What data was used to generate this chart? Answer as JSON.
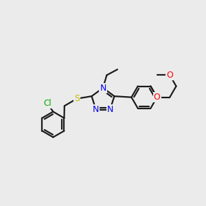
{
  "bg_color": "#ebebeb",
  "bond_color": "#1a1a1a",
  "bond_width": 1.6,
  "dbo": 0.1,
  "atom_colors": {
    "N": "#0000ee",
    "O": "#ff0000",
    "S": "#bbbb00",
    "Cl": "#00aa00"
  },
  "fs": 8.5
}
